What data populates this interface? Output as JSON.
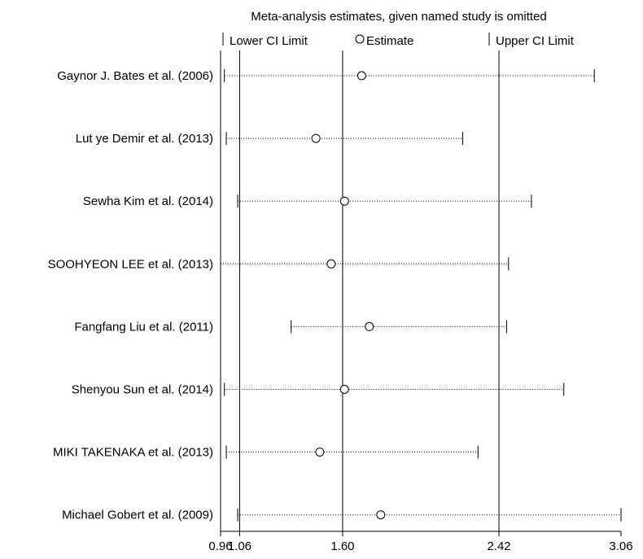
{
  "chart_data": {
    "type": "forest",
    "title": "Meta-analysis estimates, given named study is omitted",
    "legend": {
      "lower": "Lower CI Limit",
      "estimate": "Estimate",
      "upper": "Upper CI Limit",
      "position": "top"
    },
    "xlim": [
      0.96,
      3.06
    ],
    "ticks": [
      {
        "value": 0.96,
        "label": "0.96"
      },
      {
        "value": 1.06,
        "label": "1.06"
      },
      {
        "value": 1.6,
        "label": "1.60"
      },
      {
        "value": 2.42,
        "label": "2.42"
      },
      {
        "value": 3.06,
        "label": "3.06"
      }
    ],
    "reference_lines": [
      1.06,
      1.6,
      2.42
    ],
    "studies": [
      {
        "name": "Gaynor J. Bates et al. (2006)",
        "lower": 0.98,
        "estimate": 1.7,
        "upper": 2.92
      },
      {
        "name": "Lut ye Demir et al. (2013)",
        "lower": 0.99,
        "estimate": 1.46,
        "upper": 2.23
      },
      {
        "name": "Sewha Kim et al. (2014)",
        "lower": 1.05,
        "estimate": 1.61,
        "upper": 2.59
      },
      {
        "name": "SOOHYEON LEE et al. (2013)",
        "lower": 0.96,
        "estimate": 1.54,
        "upper": 2.47
      },
      {
        "name": "Fangfang Liu et al. (2011)",
        "lower": 1.33,
        "estimate": 1.74,
        "upper": 2.46
      },
      {
        "name": "Shenyou Sun et al. (2014)",
        "lower": 0.98,
        "estimate": 1.61,
        "upper": 2.76
      },
      {
        "name": "MIKI TAKENAKA et al. (2013)",
        "lower": 0.99,
        "estimate": 1.48,
        "upper": 2.31
      },
      {
        "name": "Michael Gobert et al. (2009)",
        "lower": 1.05,
        "estimate": 1.8,
        "upper": 3.06
      }
    ]
  }
}
